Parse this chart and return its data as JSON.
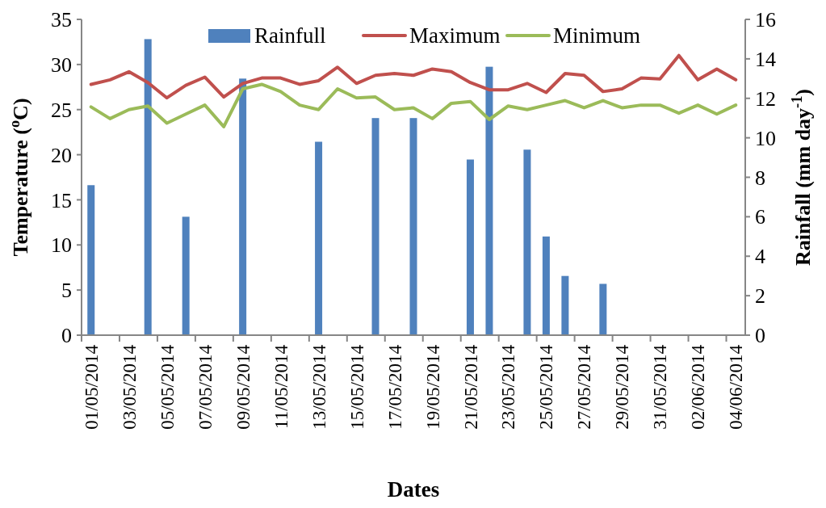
{
  "chart_data": {
    "type": "bar",
    "xlabel": "Dates",
    "ylabel": "Temperature ($^{o}$C)",
    "y2label": "Rainfall (mm day$^{-1}$)",
    "categories": [
      "01/05/2014",
      null,
      "03/05/2014",
      null,
      "05/05/2014",
      null,
      "07/05/2014",
      null,
      "09/05/2014",
      null,
      "11/05/2014",
      null,
      "13/05/2014",
      null,
      "15/05/2014",
      null,
      "17/05/2014",
      null,
      "19/05/2014",
      null,
      "21/05/2014",
      null,
      "23/05/2014",
      null,
      "25/05/2014",
      null,
      "27/05/2014",
      null,
      "29/05/2014",
      null,
      "31/05/2014",
      null,
      "02/06/2014",
      null,
      "04/06/2014"
    ],
    "series": [
      {
        "name": "Rainfull",
        "axis": "y2",
        "color": "#4f81bd",
        "values": [
          7.6,
          null,
          null,
          15.0,
          null,
          6.0,
          null,
          null,
          13.0,
          null,
          null,
          null,
          9.8,
          null,
          null,
          11.0,
          null,
          11.0,
          null,
          null,
          8.9,
          13.6,
          null,
          9.4,
          5.0,
          3.0,
          null,
          2.6,
          null,
          null,
          null,
          null,
          null,
          null,
          null
        ]
      },
      {
        "name": "Maximum",
        "type": "line",
        "color": "#c0504d",
        "values": [
          27.8,
          28.3,
          29.2,
          28.0,
          26.3,
          27.7,
          28.6,
          26.4,
          27.9,
          28.5,
          28.5,
          27.8,
          28.2,
          29.7,
          27.9,
          28.8,
          29.0,
          28.8,
          29.5,
          29.2,
          28.0,
          27.2,
          27.2,
          27.9,
          26.9,
          29.0,
          28.8,
          27.0,
          27.3,
          28.5,
          28.4,
          31.0,
          28.3,
          29.5,
          28.3
        ]
      },
      {
        "name": "Minimum",
        "type": "line",
        "color": "#9bbb59",
        "values": [
          25.3,
          24.0,
          25.0,
          25.4,
          23.5,
          24.5,
          25.5,
          23.1,
          27.3,
          27.8,
          27.0,
          25.5,
          25.0,
          27.3,
          26.3,
          26.4,
          25.0,
          25.2,
          24.0,
          25.7,
          25.9,
          23.9,
          25.4,
          25.0,
          25.5,
          26.0,
          25.2,
          26.0,
          25.2,
          25.5,
          25.5,
          24.6,
          25.5,
          24.5,
          25.5
        ]
      }
    ],
    "ylim": [
      0,
      35
    ],
    "yticks": [
      0,
      5,
      10,
      15,
      20,
      25,
      30,
      35
    ],
    "y2lim": [
      0,
      16
    ],
    "y2ticks": [
      0,
      2,
      4,
      6,
      8,
      10,
      12,
      14,
      16
    ],
    "legend": "top",
    "grid": false,
    "marker": "none",
    "line_style": "solid"
  }
}
